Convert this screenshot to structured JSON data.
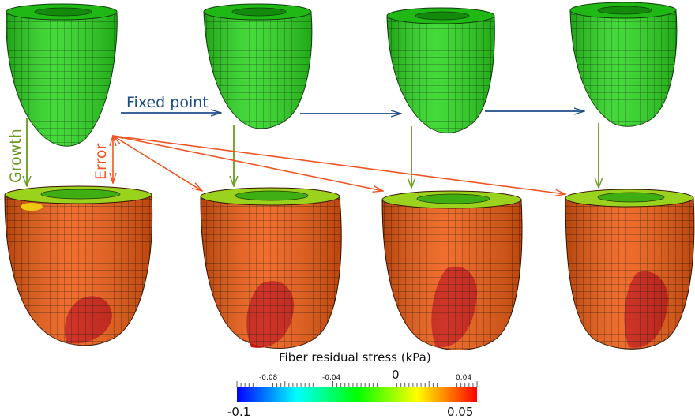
{
  "labels": {
    "fixed_point": "Fixed point",
    "growth": "Growth",
    "error": "Error"
  },
  "colorbar": {
    "title": "Fiber residual stress (kPa)",
    "min_label": "-0.1",
    "max_label": "0.05",
    "zero_label": "0",
    "ticks": [
      "-0.08",
      "-0.04",
      "0.04"
    ],
    "colormap": [
      "#0000ff",
      "#00ffff",
      "#00ff00",
      "#ffff00",
      "#ff0000"
    ]
  },
  "colors": {
    "fixed_point_arrow": "#1f4e8c",
    "growth_arrow": "#6a9a1f",
    "error_arrow": "#ee5522",
    "undeformed_heart": "#2ad61e",
    "stressed_heart": "#ee5a10",
    "stressed_apex": "#c8180a",
    "mesh_line": "#1a1a1a"
  }
}
